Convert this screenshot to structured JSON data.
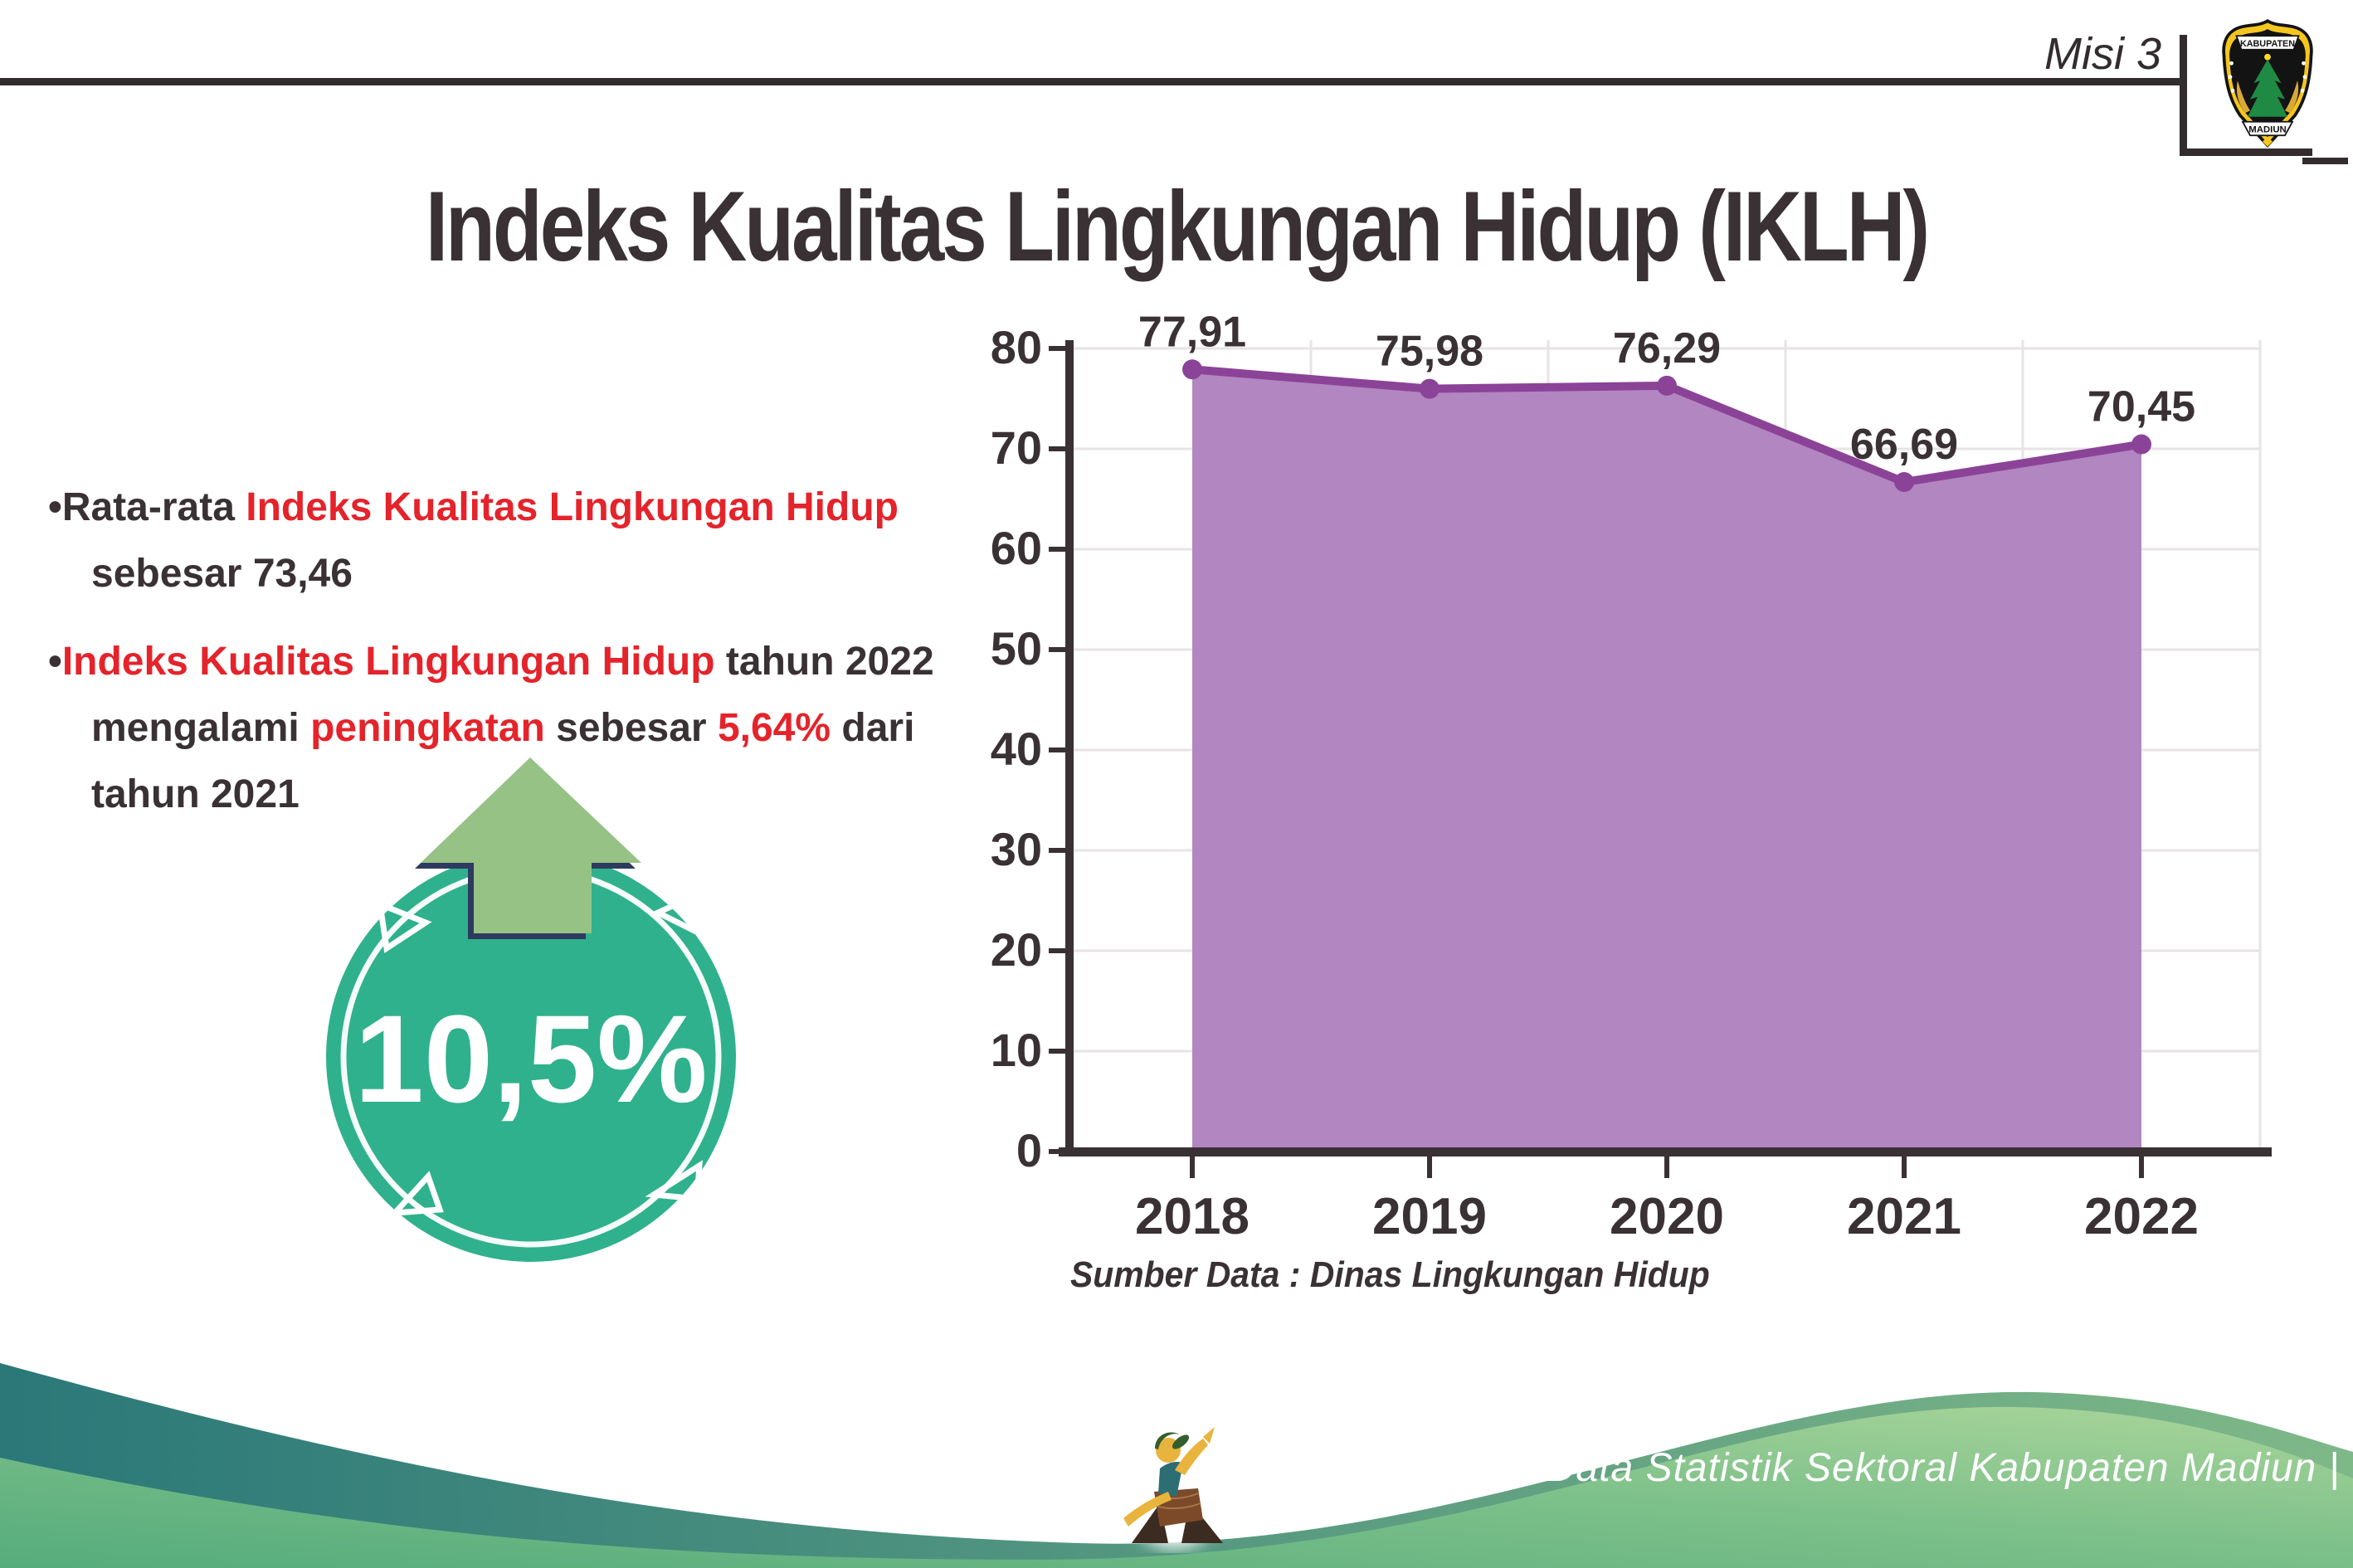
{
  "header": {
    "mission_label": "Misi 3",
    "title": "Indeks Kualitas Lingkungan Hidup (IKLH)",
    "logo": {
      "name": "Kabupaten Madiun",
      "top_text": "KABUPATEN",
      "bottom_text": "MADIUN"
    }
  },
  "highlights": {
    "bullet_glyph": "•",
    "bullet1": {
      "lead": "Rata-rata ",
      "highlight": "Indeks Kualitas Lingkungan Hidup",
      "line2": "sebesar 73,46"
    },
    "bullet2": {
      "highlight1": "Indeks Kualitas Lingkungan Hidup",
      "tail1": " tahun 2022",
      "line2_a": "mengalami ",
      "line2_b": "peningkatan",
      "line2_c": " sebesar ",
      "line2_d": "5,64%",
      "line2_e": " dari",
      "line3": "tahun 2021"
    }
  },
  "badge": {
    "value": "10,5%"
  },
  "chart_data": {
    "type": "area",
    "categories": [
      "2018",
      "2019",
      "2020",
      "2021",
      "2022"
    ],
    "values": [
      77.91,
      75.98,
      76.29,
      66.69,
      70.45
    ],
    "value_labels": [
      "77,91",
      "75,98",
      "76,29",
      "66,69",
      "70,45"
    ],
    "y_ticks": [
      0,
      10,
      20,
      30,
      40,
      50,
      60,
      70,
      80
    ],
    "ylim": [
      0,
      85
    ],
    "grid": true,
    "legend": "none",
    "area_color": "#b286c0",
    "line_color": "#8b4397",
    "source_note": "Sumber Data : Dinas Lingkungan Hidup"
  },
  "footer": {
    "caption": "Media Infografis Data Statistik Sektoral Kabupaten Madiun |"
  },
  "colors": {
    "red": "#e4232b",
    "dark": "#3a3134",
    "rule": "#332c2e",
    "grid": "#e7e3e6",
    "badge_teal": "#2fb18d",
    "arrow_green": "#96c285",
    "navy": "#2e3a5f",
    "footer_teal": "#2b7879",
    "footer_green": "#7dc08a"
  }
}
